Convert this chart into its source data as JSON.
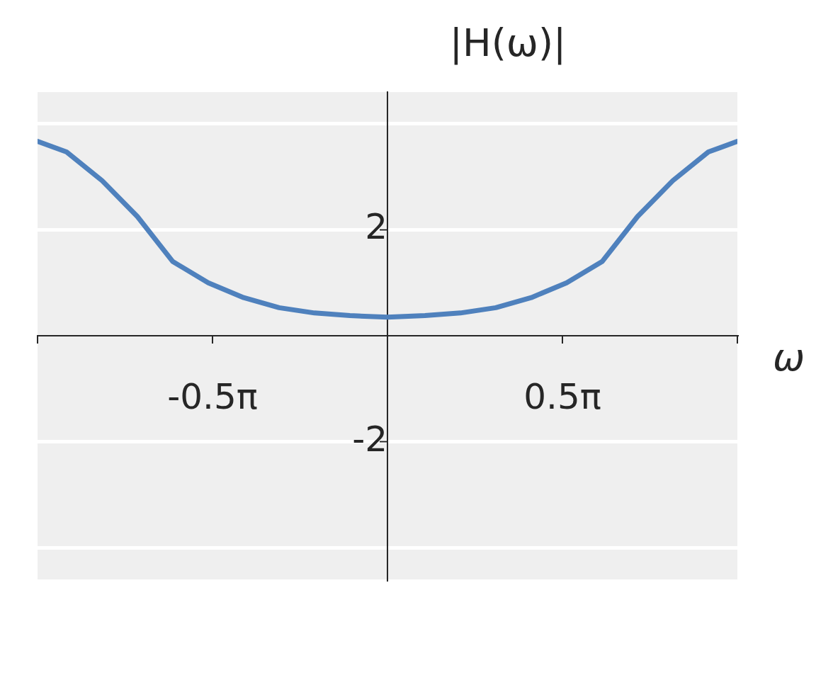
{
  "chart_data": {
    "type": "line",
    "xlabel": "ω",
    "ylabel": "|H(ω)|",
    "x": [
      -3.1416,
      -2.881,
      -2.563,
      -2.245,
      -1.927,
      -1.609,
      -1.291,
      -0.973,
      -0.655,
      -0.337,
      0,
      0.337,
      0.655,
      0.973,
      1.291,
      1.609,
      1.927,
      2.245,
      2.563,
      2.881,
      3.1416
    ],
    "series": [
      {
        "color": "#4f81bd",
        "values": [
          3.67,
          3.47,
          2.93,
          2.25,
          1.4,
          1.0,
          0.72,
          0.53,
          0.43,
          0.38,
          0.35,
          0.38,
          0.43,
          0.53,
          0.72,
          1.0,
          1.4,
          2.25,
          2.93,
          3.47,
          3.67
        ]
      }
    ],
    "xlim": [
      -3.1416,
      3.1416
    ],
    "xticks": [
      {
        "value": -3.1416,
        "label": null
      },
      {
        "value": -1.5708,
        "label": "-0.5π"
      },
      {
        "value": 0,
        "label": null
      },
      {
        "value": 1.5708,
        "label": "0.5π"
      },
      {
        "value": 3.1416,
        "label": null
      }
    ],
    "ylim": [
      -4.6,
      4.6
    ],
    "yticks": [
      {
        "value": -4,
        "label": null
      },
      -2,
      2,
      {
        "value": 4,
        "label": null
      }
    ],
    "grid": "y",
    "legend": false,
    "marker": "none",
    "line_style": "solid"
  }
}
